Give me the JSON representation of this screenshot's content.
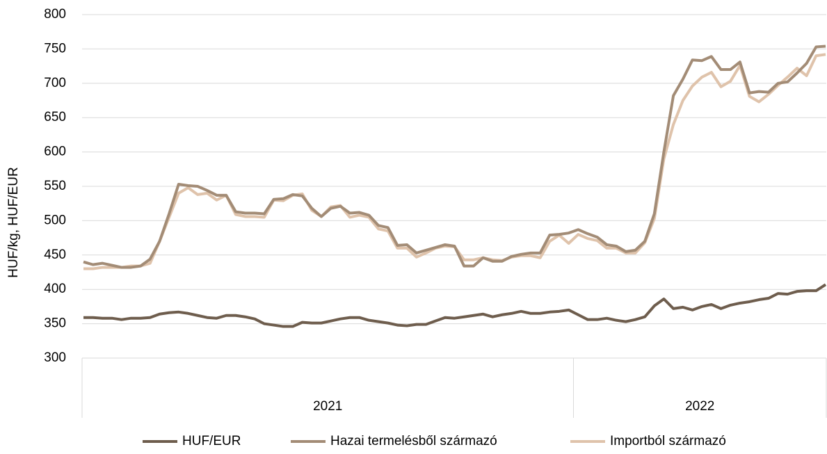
{
  "chart_data": {
    "type": "line",
    "y_label": "HUF/kg, HUF/EUR",
    "ylim": [
      300,
      800
    ],
    "yticks": [
      300,
      350,
      400,
      450,
      500,
      550,
      600,
      650,
      700,
      750,
      800
    ],
    "grid": true,
    "legend": "bottom",
    "categories": [
      null,
      null,
      null,
      null,
      null,
      null,
      null,
      null,
      null,
      null,
      null,
      null,
      null,
      null,
      null,
      null,
      null,
      null,
      null,
      null,
      null,
      null,
      null,
      null,
      null,
      null,
      null,
      null,
      null,
      null,
      null,
      null,
      null,
      null,
      null,
      null,
      null,
      null,
      null,
      null,
      null,
      null,
      null,
      null,
      null,
      null,
      null,
      null,
      null,
      null,
      null,
      null,
      null,
      null,
      null,
      null,
      null,
      null,
      null,
      null,
      null,
      null,
      null,
      null,
      null,
      null,
      null,
      null,
      null,
      null,
      null,
      null,
      null,
      null,
      null,
      null,
      null,
      null,
      null
    ],
    "groups": [
      {
        "label": "2021",
        "count": 52
      },
      {
        "label": "2022",
        "count": 27
      }
    ],
    "series": [
      {
        "name": "HUF/EUR",
        "color": "#6e5d4d",
        "values": [
          359,
          359,
          358,
          358,
          356,
          358,
          358,
          359,
          364,
          366,
          367,
          365,
          362,
          359,
          358,
          362,
          362,
          360,
          357,
          350,
          348,
          346,
          346,
          352,
          351,
          351,
          354,
          357,
          359,
          359,
          355,
          353,
          351,
          348,
          347,
          349,
          349,
          354,
          359,
          358,
          360,
          362,
          364,
          360,
          363,
          365,
          368,
          365,
          365,
          367,
          368,
          370,
          363,
          356,
          356,
          358,
          355,
          353,
          356,
          360,
          376,
          386,
          372,
          374,
          370,
          375,
          378,
          372,
          377,
          380,
          382,
          385,
          387,
          394,
          393,
          397,
          398,
          398,
          407
        ]
      },
      {
        "name": "Hazai termelésből származó",
        "color": "#a38c76",
        "values": [
          440,
          436,
          438,
          435,
          432,
          432,
          434,
          444,
          470,
          510,
          553,
          551,
          550,
          544,
          537,
          537,
          513,
          511,
          511,
          510,
          531,
          532,
          538,
          536,
          518,
          506,
          518,
          521,
          511,
          512,
          508,
          493,
          490,
          464,
          465,
          453,
          457,
          461,
          465,
          463,
          434,
          434,
          446,
          441,
          441,
          448,
          451,
          453,
          453,
          479,
          480,
          482,
          487,
          481,
          476,
          465,
          463,
          455,
          457,
          470,
          510,
          600,
          682,
          706,
          734,
          733,
          739,
          720,
          720,
          731,
          686,
          688,
          687,
          700,
          702,
          715,
          729,
          753,
          754
        ]
      },
      {
        "name": "Importból származó",
        "color": "#dfc3ab",
        "values": [
          430,
          430,
          432,
          432,
          432,
          434,
          434,
          438,
          470,
          505,
          540,
          548,
          538,
          540,
          530,
          537,
          509,
          506,
          506,
          505,
          530,
          529,
          537,
          539,
          515,
          506,
          520,
          522,
          505,
          508,
          505,
          488,
          485,
          460,
          460,
          447,
          453,
          460,
          463,
          462,
          443,
          443,
          446,
          443,
          442,
          447,
          449,
          449,
          446,
          470,
          479,
          467,
          480,
          474,
          471,
          460,
          460,
          453,
          453,
          468,
          503,
          590,
          640,
          675,
          696,
          709,
          716,
          695,
          703,
          726,
          681,
          673,
          684,
          697,
          709,
          722,
          711,
          740,
          742
        ]
      }
    ]
  }
}
